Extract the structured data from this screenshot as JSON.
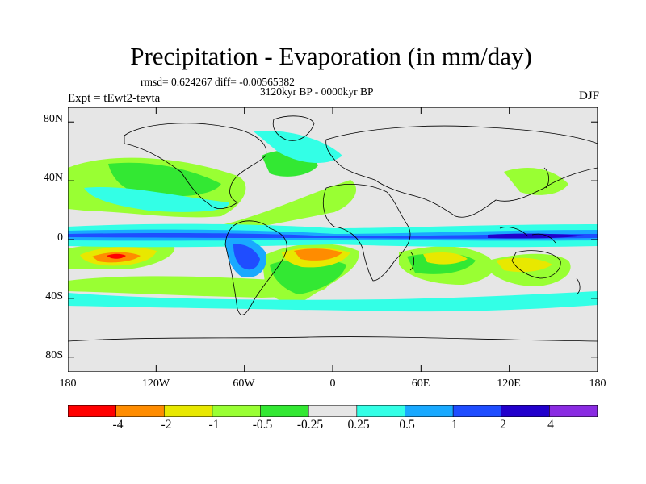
{
  "title": "Precipitation - Evaporation (in mm/day)",
  "stats": "rmsd= 0.624267 diff= -0.00565382",
  "period": "3120kyr BP - 0000kyr BP",
  "experiment": "Expt = tEwt2-tevta",
  "season": "DJF",
  "axes": {
    "lat_ticks": [
      {
        "label": "80N",
        "lat": 80
      },
      {
        "label": "40N",
        "lat": 40
      },
      {
        "label": "0",
        "lat": 0
      },
      {
        "label": "40S",
        "lat": -40
      },
      {
        "label": "80S",
        "lat": -80
      }
    ],
    "lon_ticks": [
      {
        "label": "180",
        "lon": -180
      },
      {
        "label": "120W",
        "lon": -120
      },
      {
        "label": "60W",
        "lon": -60
      },
      {
        "label": "0",
        "lon": 0
      },
      {
        "label": "60E",
        "lon": 60
      },
      {
        "label": "120E",
        "lon": 120
      },
      {
        "label": "180",
        "lon": 180
      }
    ],
    "lat_range": [
      -90,
      90
    ],
    "lon_range": [
      -180,
      180
    ]
  },
  "colorbar": {
    "labels": [
      "-4",
      "-2",
      "-1",
      "-0.5",
      "-0.25",
      "0.25",
      "0.5",
      "1",
      "2",
      "4"
    ],
    "colors": [
      "#ff0000",
      "#ff8c00",
      "#e8e800",
      "#99ff33",
      "#33e833",
      "#e6e6e6",
      "#33ffe6",
      "#19a9ff",
      "#1f4dff",
      "#2200cc",
      "#8a2be2"
    ]
  },
  "palette": {
    "background": "#e6e6e6",
    "coast": "#000000"
  }
}
